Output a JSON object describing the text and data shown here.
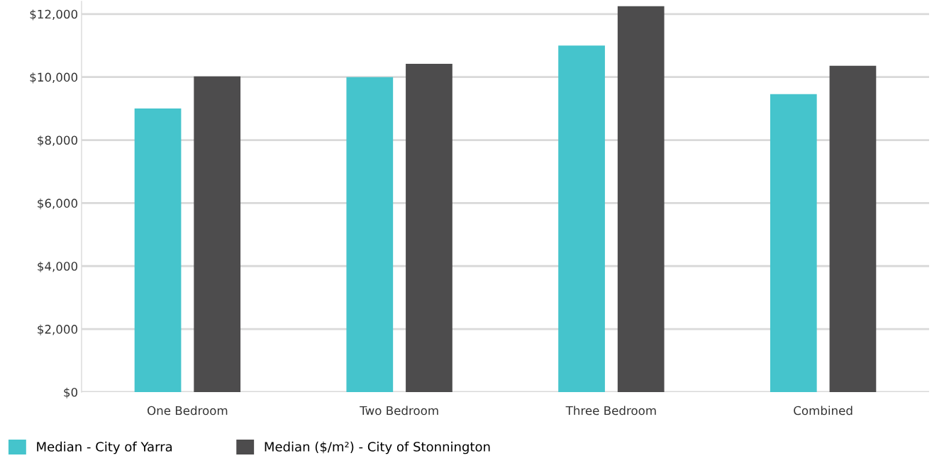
{
  "chart_data": {
    "type": "bar",
    "categories": [
      "One Bedroom",
      "Two Bedroom",
      "Three Bedroom",
      "Combined"
    ],
    "series": [
      {
        "name": "Median - City of Yarra",
        "color": "#45c4cc",
        "values": [
          9000,
          10000,
          11000,
          9460
        ]
      },
      {
        "name": "Median ($/m²) - City of Stonnington",
        "color": "#4d4c4d",
        "values": [
          10020,
          10420,
          12250,
          10360
        ]
      }
    ],
    "ylim": [
      0,
      12400
    ],
    "yticks": [
      {
        "value": 0,
        "label": "$0"
      },
      {
        "value": 2000,
        "label": "$2,000"
      },
      {
        "value": 4000,
        "label": "$4,000"
      },
      {
        "value": 6000,
        "label": "$6,000"
      },
      {
        "value": 8000,
        "label": "$8,000"
      },
      {
        "value": 10000,
        "label": "$10,000"
      },
      {
        "value": 12000,
        "label": "$12,000"
      }
    ],
    "grid": "y",
    "legend": "bottom left"
  }
}
